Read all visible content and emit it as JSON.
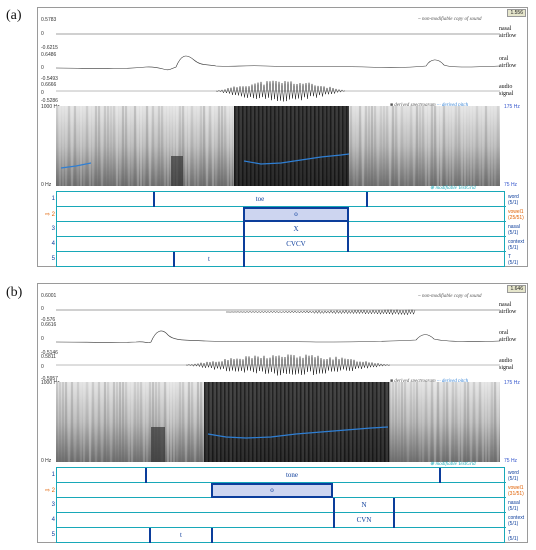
{
  "panels": [
    {
      "letter": "(a)",
      "selection_time": "1.556",
      "sound_header": "~ non-modifiable copy of sound",
      "tracks": [
        {
          "label": "nasal airflow",
          "top_value": "0.5783",
          "zero": "0",
          "bottom_value": "-0.6215"
        },
        {
          "label": "oral airflow",
          "top_value": "0.6486",
          "zero": "0",
          "bottom_value": "-0.5493"
        },
        {
          "label": "audio signal",
          "top_value": "0.6666",
          "zero": "0",
          "bottom_value": "-0.5286"
        }
      ],
      "spectrogram_header": "derived spectrogram",
      "pitch_header": "derived pitch",
      "freq_top": "1000 Hz",
      "freq_bottom": "0 Hz",
      "pitch_top": "175 Hz",
      "pitch_bottom": "75 Hz",
      "textgrid_header": "modifiable TextGrid",
      "tiers": [
        {
          "num": "1",
          "name": "word",
          "count": "(5/1)",
          "selected": false,
          "labels": [
            "toe"
          ]
        },
        {
          "num": "2",
          "name": "vowel1",
          "count": "(25/51)",
          "selected": true,
          "labels": [
            "o"
          ]
        },
        {
          "num": "3",
          "name": "nasal",
          "count": "(5/1)",
          "selected": false,
          "labels": [
            "X"
          ]
        },
        {
          "num": "4",
          "name": "context",
          "count": "(5/1)",
          "selected": false,
          "labels": [
            "CVCV"
          ]
        },
        {
          "num": "5",
          "name": "T",
          "count": "(5/1)",
          "selected": false,
          "labels": [
            "t"
          ]
        }
      ]
    },
    {
      "letter": "(b)",
      "selection_time": "1.646",
      "sound_header": "~ non-modifiable copy of sound",
      "tracks": [
        {
          "label": "nasal airflow",
          "top_value": "0.6001",
          "zero": "0",
          "bottom_value": "-0.576"
        },
        {
          "label": "oral airflow",
          "top_value": "0.6616",
          "zero": "0",
          "bottom_value": "-0.5146"
        },
        {
          "label": "audio signal",
          "top_value": "0.5811",
          "zero": "0",
          "bottom_value": "-0.5957"
        }
      ],
      "spectrogram_header": "derived spectrogram",
      "pitch_header": "derived pitch",
      "freq_top": "1000 Hz",
      "freq_bottom": "0 Hz",
      "pitch_top": "175 Hz",
      "pitch_bottom": "75 Hz",
      "textgrid_header": "modifiable TextGrid",
      "tiers": [
        {
          "num": "1",
          "name": "word",
          "count": "(5/1)",
          "selected": false,
          "labels": [
            "tone"
          ]
        },
        {
          "num": "2",
          "name": "vowel1",
          "count": "(31/51)",
          "selected": true,
          "labels": [
            "o"
          ]
        },
        {
          "num": "3",
          "name": "nasal",
          "count": "(5/1)",
          "selected": false,
          "labels": [
            "N"
          ]
        },
        {
          "num": "4",
          "name": "context",
          "count": "(5/1)",
          "selected": false,
          "labels": [
            "CVN"
          ]
        },
        {
          "num": "5",
          "name": "T",
          "count": "(5/1)",
          "selected": false,
          "labels": [
            "t"
          ]
        }
      ]
    }
  ],
  "colors": {
    "tier_border": "#18a8b8",
    "boundary": "#0c3d9b",
    "selected_interval": "#cdd5f0",
    "pitch": "#2f7fd4",
    "selected_tier": "#e06000"
  }
}
